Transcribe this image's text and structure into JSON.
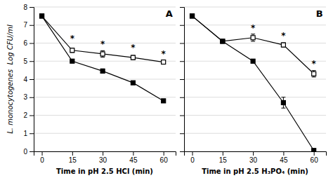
{
  "chart_data": [
    {
      "type": "line",
      "title": "A",
      "x": [
        0,
        15,
        30,
        45,
        60
      ],
      "xlabel": "Time in pH 2.5 HCl (min)",
      "ylabel": "L. monocytogenes  Log CFU/ml",
      "xlim": [
        -4,
        66
      ],
      "ylim": [
        0,
        8
      ],
      "xticks": [
        0,
        15,
        30,
        45,
        60
      ],
      "yticks": [
        0,
        1,
        2,
        3,
        4,
        5,
        6,
        7,
        8
      ],
      "grid": "y",
      "series": [
        {
          "color": "black",
          "marker": "open-square",
          "values": [
            7.5,
            5.6,
            5.4,
            5.2,
            4.95
          ],
          "errors": [
            0.0,
            0.12,
            0.18,
            0.12,
            0.08
          ]
        },
        {
          "color": "black",
          "marker": "square",
          "values": [
            7.5,
            5.0,
            4.45,
            3.8,
            2.8
          ],
          "errors": [
            0.0,
            0.08,
            0.12,
            0.1,
            0.08
          ]
        }
      ],
      "annotations": [
        {
          "text": "*",
          "x": 15,
          "y": 6.05
        },
        {
          "text": "*",
          "x": 30,
          "y": 5.75
        },
        {
          "text": "*",
          "x": 45,
          "y": 5.55
        },
        {
          "text": "*",
          "x": 60,
          "y": 5.2
        }
      ]
    },
    {
      "type": "line",
      "title": "B",
      "x": [
        0,
        15,
        30,
        45,
        60
      ],
      "xlabel": "Time in pH 2.5 H₃PO₄ (min)",
      "xlim": [
        -4,
        66
      ],
      "ylim": [
        0,
        8
      ],
      "xticks": [
        0,
        15,
        30,
        45,
        60
      ],
      "yticks": [
        0,
        1,
        2,
        3,
        4,
        5,
        6,
        7,
        8
      ],
      "grid": "y",
      "tick_labels": "x",
      "series": [
        {
          "color": "black",
          "marker": "open-square",
          "values": [
            7.5,
            6.1,
            6.3,
            5.9,
            4.3
          ],
          "errors": [
            0.0,
            0.08,
            0.2,
            0.12,
            0.18
          ]
        },
        {
          "color": "black",
          "marker": "square",
          "values": [
            7.5,
            6.1,
            5.0,
            2.7,
            0.05
          ],
          "errors": [
            0.0,
            0.08,
            0.1,
            0.3,
            0.05
          ]
        }
      ],
      "annotations": [
        {
          "text": "*",
          "x": 30,
          "y": 6.65
        },
        {
          "text": "*",
          "x": 45,
          "y": 6.2
        },
        {
          "text": "*",
          "x": 60,
          "y": 4.65
        }
      ]
    }
  ]
}
